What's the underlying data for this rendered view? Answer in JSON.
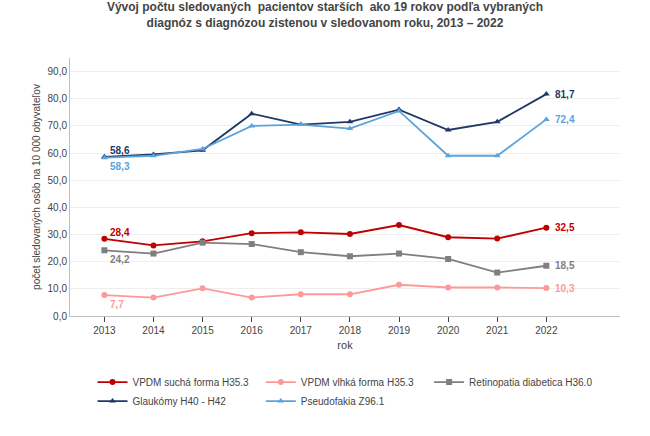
{
  "chart_data": {
    "type": "line",
    "title": "Vývoj počtu sledovaných  pacientov starších  ako 19 rokov podľa vybraných\ndiagnóz s diagnózou zistenou v sledovanom roku, 2013 – 2022",
    "x_label": "rok",
    "y_label": "počet sledovaných osôb na 10 000 obyvateľov",
    "x": [
      2013,
      2014,
      2015,
      2016,
      2017,
      2018,
      2019,
      2020,
      2021,
      2022
    ],
    "series": [
      {
        "name": "VPDM suchá forma H35.3",
        "color": "#C00000",
        "marker": "circle",
        "values": [
          28.4,
          26.0,
          27.5,
          30.5,
          30.8,
          30.2,
          33.5,
          29.0,
          28.5,
          32.5
        ],
        "value_labels": [
          "28,4",
          null,
          null,
          null,
          null,
          null,
          null,
          null,
          null,
          "32,5"
        ]
      },
      {
        "name": "VPDM vlhká forma H35.3",
        "color": "#FF9999",
        "marker": "circle",
        "values": [
          7.7,
          6.8,
          10.2,
          6.8,
          8.0,
          8.0,
          11.5,
          10.5,
          10.5,
          10.3
        ],
        "value_labels": [
          "7,7",
          null,
          null,
          null,
          null,
          null,
          null,
          null,
          null,
          "10,3"
        ]
      },
      {
        "name": "Retinopatia diabetica H36.0",
        "color": "#7F7F7F",
        "marker": "square",
        "values": [
          24.2,
          23.0,
          27.0,
          26.5,
          23.5,
          22.0,
          23.0,
          21.0,
          16.0,
          18.5
        ],
        "value_labels": [
          "24,2",
          null,
          null,
          null,
          null,
          null,
          null,
          null,
          null,
          "18,5"
        ]
      },
      {
        "name": "Glaukómy H40 - H42",
        "color": "#1F3864",
        "marker": "triangle-up",
        "values": [
          58.6,
          59.5,
          61.0,
          74.5,
          70.5,
          71.5,
          76.0,
          68.5,
          71.5,
          81.7
        ],
        "value_labels": [
          "58,6",
          null,
          null,
          null,
          null,
          null,
          null,
          null,
          null,
          "81,7"
        ]
      },
      {
        "name": "Pseudofakia Z96.1",
        "color": "#5BA3DC",
        "marker": "triangle-up",
        "values": [
          58.3,
          59.0,
          61.5,
          70.0,
          70.5,
          69.0,
          75.5,
          59.0,
          59.0,
          72.4
        ],
        "value_labels": [
          "58,3",
          null,
          null,
          null,
          null,
          null,
          null,
          null,
          null,
          "72,4"
        ]
      }
    ],
    "xlim": [
      2012.3,
      2023.5
    ],
    "xticks": [
      2013,
      2014,
      2015,
      2016,
      2017,
      2018,
      2019,
      2020,
      2021,
      2022
    ],
    "ylim": [
      0,
      95
    ],
    "yticks": [
      {
        "value": 0,
        "label": "0,0"
      },
      {
        "value": 10,
        "label": "10,0"
      },
      {
        "value": 20,
        "label": "20,0"
      },
      {
        "value": 30,
        "label": "30,0"
      },
      {
        "value": 40,
        "label": "40,0"
      },
      {
        "value": 50,
        "label": "50,0"
      },
      {
        "value": 60,
        "label": "60,0"
      },
      {
        "value": 70,
        "label": "70,0"
      },
      {
        "value": 80,
        "label": "80,0"
      },
      {
        "value": 90,
        "label": "90,0"
      }
    ],
    "grid": "y",
    "legend": "bottom"
  }
}
